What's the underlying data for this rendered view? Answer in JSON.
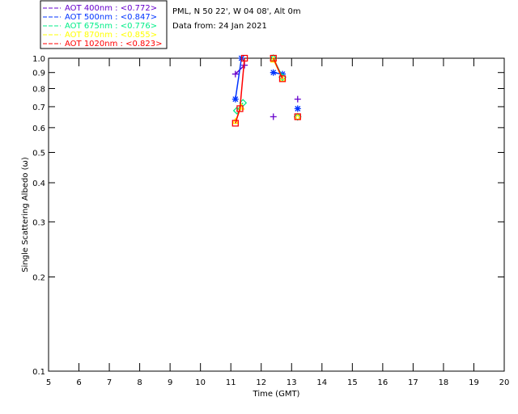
{
  "chart_data": {
    "type": "scatter",
    "header": [
      "PML, N 50 22', W 04 08', Alt 0m",
      "Data from: 24 Jan 2021"
    ],
    "xlabel": "Time (GMT)",
    "ylabel": "Single Scattering Albedo (ω)",
    "xlim": [
      5,
      20
    ],
    "ylim": [
      0.1,
      1.0
    ],
    "yscale": "log",
    "xticks": [
      "5",
      "6",
      "7",
      "8",
      "9",
      "10",
      "11",
      "12",
      "13",
      "14",
      "15",
      "16",
      "17",
      "18",
      "19",
      "20"
    ],
    "yticks": [
      "0.1",
      "0.2",
      "0.3",
      "0.4",
      "0.5",
      "0.6",
      "0.7",
      "0.8",
      "0.9",
      "1.0"
    ],
    "legend_placement": "top-left outside",
    "series": [
      {
        "name": "AOT  400nm : <0.772>",
        "color": "#6600cc",
        "marker": "plus",
        "x": [
          11.15,
          11.45,
          12.4,
          13.2
        ],
        "y": [
          0.89,
          0.95,
          0.65,
          0.74
        ]
      },
      {
        "name": "AOT  500nm : <0.847>",
        "color": "#0033ff",
        "marker": "star",
        "x": [
          11.15,
          11.35,
          12.4,
          12.7,
          13.2
        ],
        "y": [
          0.74,
          1.0,
          0.9,
          0.89,
          0.69
        ]
      },
      {
        "name": "AOT  675nm : <0.776>",
        "color": "#00ee88",
        "marker": "diamond",
        "x": [
          11.2,
          11.4,
          12.4,
          12.7,
          13.2
        ],
        "y": [
          0.68,
          0.72,
          1.0,
          0.87,
          0.65
        ]
      },
      {
        "name": "AOT  870nm : <0.855>",
        "color": "#ffff00",
        "marker": "triangle",
        "x": [
          11.15,
          11.35,
          12.4,
          12.7,
          13.2
        ],
        "y": [
          0.63,
          0.7,
          0.99,
          0.86,
          0.65
        ]
      },
      {
        "name": "AOT 1020nm : <0.823>",
        "color": "#ff0000",
        "marker": "square",
        "x": [
          11.15,
          11.3,
          11.45,
          12.4,
          12.7,
          13.2
        ],
        "y": [
          0.62,
          0.69,
          1.0,
          1.0,
          0.86,
          0.65
        ]
      }
    ]
  }
}
